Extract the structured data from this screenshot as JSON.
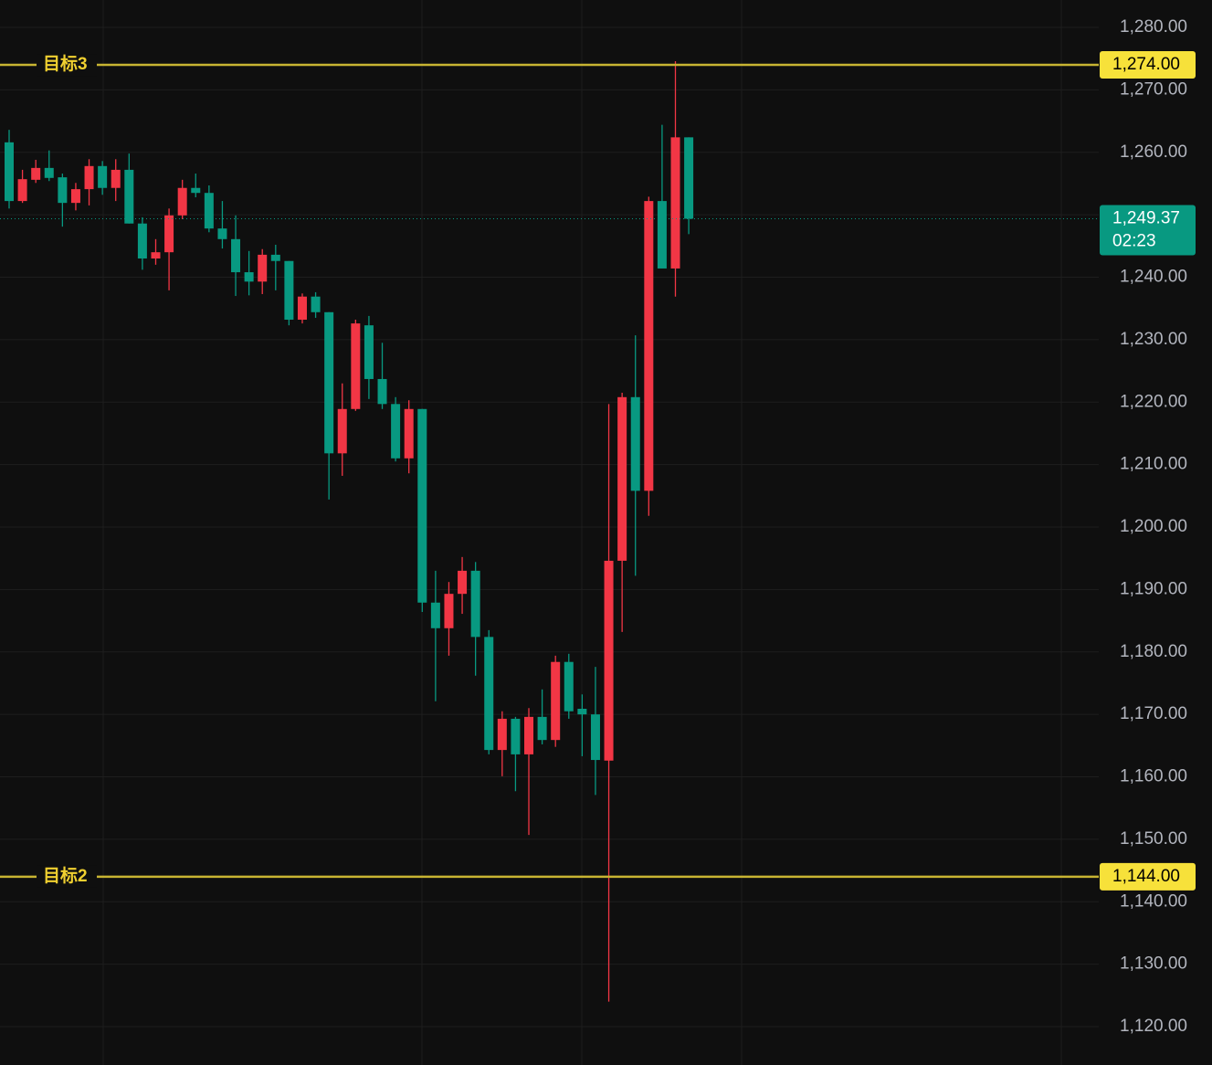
{
  "chart_data": {
    "type": "candlestick",
    "x": [
      null,
      null,
      null,
      null,
      null,
      null,
      null,
      null,
      null,
      null,
      null,
      null,
      null,
      null,
      null,
      null,
      null,
      null,
      null,
      null,
      null,
      null,
      null,
      null,
      null,
      null,
      null,
      null,
      null,
      null,
      null,
      null,
      null,
      null,
      null,
      null,
      null,
      null,
      null,
      null,
      null,
      null,
      null,
      null,
      null,
      null,
      null,
      null,
      null,
      null,
      null,
      null
    ],
    "open": [
      1261.6,
      1252.2,
      1255.6,
      1257.5,
      1256.0,
      1251.9,
      1254.1,
      1257.8,
      1254.3,
      1257.2,
      1248.6,
      1243.0,
      1244.0,
      1249.9,
      1254.3,
      1253.5,
      1247.8,
      1246.1,
      1240.8,
      1239.3,
      1243.6,
      1242.6,
      1233.2,
      1236.9,
      1234.4,
      1211.8,
      1218.9,
      1232.3,
      1223.7,
      1219.7,
      1211.0,
      1218.9,
      1187.9,
      1183.8,
      1189.3,
      1193.0,
      1182.4,
      1164.3,
      1169.3,
      1163.6,
      1169.6,
      1165.9,
      1178.4,
      1170.9,
      1170.0,
      1162.6,
      1194.6,
      1220.8,
      1205.8,
      1252.2,
      1241.4,
      1262.4
    ],
    "high": [
      1263.6,
      1257.2,
      1258.8,
      1260.3,
      1256.6,
      1255.1,
      1258.9,
      1258.6,
      1258.9,
      1259.8,
      1249.6,
      1246.1,
      1251.0,
      1255.6,
      1256.6,
      1254.7,
      1252.2,
      1249.9,
      1244.2,
      1244.5,
      1245.2,
      1242.6,
      1237.4,
      1237.6,
      1234.4,
      1223.0,
      1233.2,
      1233.8,
      1229.5,
      1220.8,
      1220.3,
      1218.9,
      1193.0,
      1191.2,
      1195.2,
      1194.4,
      1183.5,
      1170.5,
      1169.6,
      1171.0,
      1174.0,
      1179.4,
      1179.7,
      1173.2,
      1177.6,
      1219.7,
      1221.5,
      1230.7,
      1252.9,
      1264.4,
      1274.6,
      1262.4
    ],
    "low": [
      1251.0,
      1251.9,
      1255.1,
      1255.4,
      1248.1,
      1250.7,
      1251.5,
      1253.2,
      1252.2,
      1248.6,
      1241.2,
      1242.0,
      1237.9,
      1249.3,
      1252.8,
      1247.2,
      1244.6,
      1237.0,
      1237.1,
      1237.3,
      1237.9,
      1232.3,
      1232.6,
      1233.5,
      1204.4,
      1208.2,
      1218.6,
      1220.5,
      1218.9,
      1210.5,
      1208.6,
      1186.4,
      1172.1,
      1179.4,
      1186.1,
      1176.2,
      1163.6,
      1160.1,
      1157.7,
      1150.7,
      1165.2,
      1164.8,
      1169.3,
      1163.3,
      1157.1,
      1124.0,
      1183.2,
      1192.2,
      1201.8,
      1241.4,
      1236.9,
      1246.9
    ],
    "close": [
      1252.2,
      1255.7,
      1257.5,
      1255.9,
      1251.9,
      1254.1,
      1257.8,
      1254.3,
      1257.2,
      1248.6,
      1243.0,
      1244.0,
      1249.9,
      1254.3,
      1253.5,
      1247.8,
      1246.1,
      1240.8,
      1239.3,
      1243.6,
      1242.6,
      1233.2,
      1236.9,
      1234.4,
      1211.8,
      1218.9,
      1232.6,
      1223.7,
      1219.7,
      1211.0,
      1218.9,
      1187.9,
      1183.8,
      1189.3,
      1193.0,
      1182.4,
      1164.3,
      1169.3,
      1163.6,
      1169.6,
      1165.9,
      1178.4,
      1170.5,
      1170.0,
      1162.7,
      1194.6,
      1220.8,
      1205.8,
      1252.2,
      1241.4,
      1262.4,
      1249.37
    ],
    "up_color": "#f23645",
    "down_color": "#089981",
    "ylim": [
      1113.86,
      1284.39
    ],
    "yticks": [
      {
        "value": 1120,
        "label": "1,120.00"
      },
      {
        "value": 1130,
        "label": "1,130.00"
      },
      {
        "value": 1140,
        "label": "1,140.00"
      },
      {
        "value": 1150,
        "label": "1,150.00"
      },
      {
        "value": 1160,
        "label": "1,160.00"
      },
      {
        "value": 1170,
        "label": "1,170.00"
      },
      {
        "value": 1180,
        "label": "1,180.00"
      },
      {
        "value": 1190,
        "label": "1,190.00"
      },
      {
        "value": 1200,
        "label": "1,200.00"
      },
      {
        "value": 1210,
        "label": "1,210.00"
      },
      {
        "value": 1220,
        "label": "1,220.00"
      },
      {
        "value": 1230,
        "label": "1,230.00"
      },
      {
        "value": 1240,
        "label": "1,240.00"
      },
      {
        "value": 1250,
        "label": "1,250.00"
      },
      {
        "value": 1260,
        "label": "1,260.00"
      },
      {
        "value": 1270,
        "label": "1,270.00"
      },
      {
        "value": 1280,
        "label": "1,280.00"
      }
    ],
    "grid": true,
    "annotations": [
      {
        "name": "目标3",
        "value": 1274,
        "value_label": "1,274.00",
        "color": "#c8b432"
      },
      {
        "name": "目标2",
        "value": 1144,
        "value_label": "1,144.00",
        "color": "#c8b432"
      }
    ],
    "last_price": {
      "value": 1249.37,
      "label": "1,249.37",
      "countdown": "02:23"
    }
  }
}
